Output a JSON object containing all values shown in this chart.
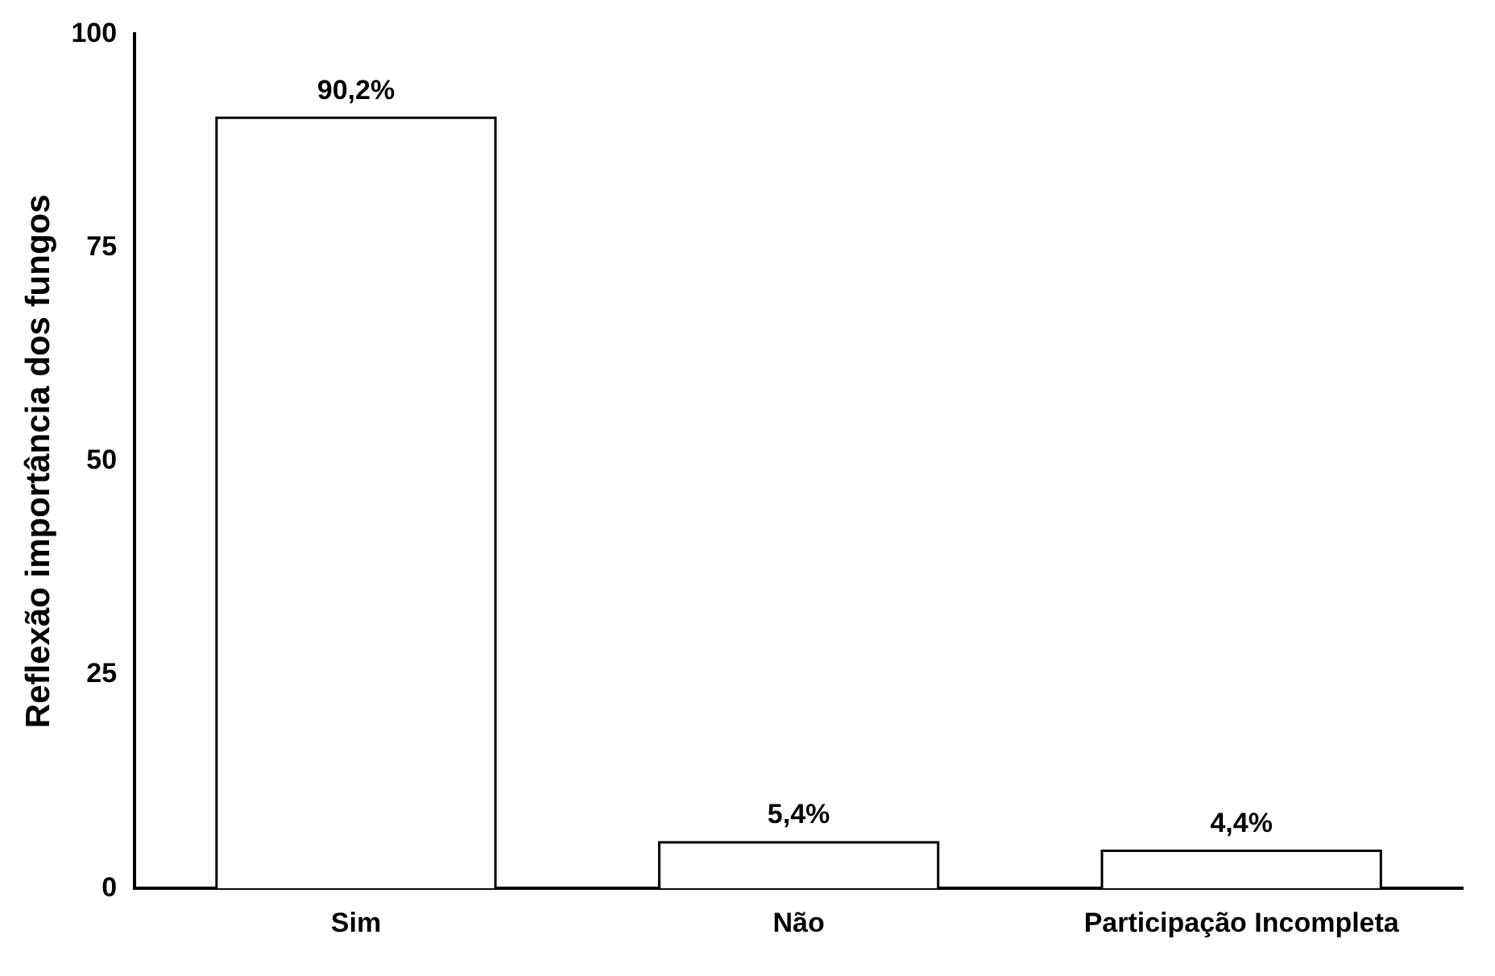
{
  "chart_data": {
    "type": "bar",
    "ylabel": "Reflexão importância dos fungos",
    "categories": [
      "Sim",
      "Não",
      "Participação Incompleta"
    ],
    "values": [
      90.2,
      5.4,
      4.4
    ],
    "value_labels": [
      "90,2%",
      "5,4%",
      "4,4%"
    ],
    "colors": [
      "#ffffff",
      "#ffffff",
      "#ffffff"
    ],
    "ylim": [
      0,
      100
    ],
    "yticks": [
      0,
      25,
      50,
      75,
      100
    ],
    "grid": false,
    "legend": false
  }
}
